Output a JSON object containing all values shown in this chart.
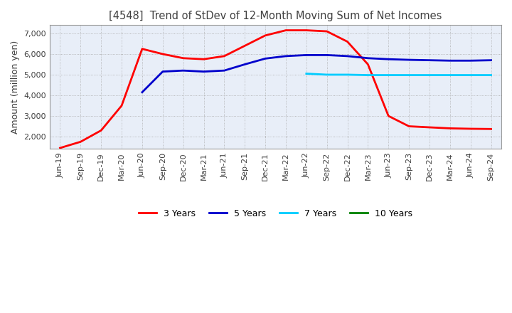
{
  "title": "[4548]  Trend of StDev of 12-Month Moving Sum of Net Incomes",
  "ylabel": "Amount (million yen)",
  "ylim": [
    1400,
    7400
  ],
  "yticks": [
    2000,
    3000,
    4000,
    5000,
    6000,
    7000
  ],
  "background_color": "#ffffff",
  "plot_bg_color": "#e8eef8",
  "grid_color": "#aaaaaa",
  "x_labels": [
    "Jun-19",
    "Sep-19",
    "Dec-19",
    "Mar-20",
    "Jun-20",
    "Sep-20",
    "Dec-20",
    "Mar-21",
    "Jun-21",
    "Sep-21",
    "Dec-21",
    "Mar-22",
    "Jun-22",
    "Sep-22",
    "Dec-22",
    "Mar-23",
    "Jun-23",
    "Sep-23",
    "Dec-23",
    "Mar-24",
    "Jun-24",
    "Sep-24"
  ],
  "series": {
    "3 Years": {
      "color": "#ff0000",
      "values": [
        1450,
        1750,
        2300,
        3500,
        6250,
        6000,
        5800,
        5750,
        5900,
        6400,
        6900,
        7150,
        7150,
        7100,
        6600,
        5500,
        3000,
        2500,
        2450,
        2400,
        2380,
        2370
      ]
    },
    "5 Years": {
      "color": "#0000cc",
      "values": [
        null,
        null,
        null,
        null,
        4150,
        5150,
        5200,
        5150,
        5200,
        5500,
        5780,
        5900,
        5950,
        5950,
        5900,
        5800,
        5750,
        5720,
        5700,
        5680,
        5680,
        5700
      ]
    },
    "7 Years": {
      "color": "#00ccff",
      "values": [
        null,
        null,
        null,
        null,
        null,
        null,
        null,
        null,
        null,
        null,
        null,
        null,
        5050,
        5000,
        5000,
        4980,
        4980,
        4980,
        4980,
        4980,
        4980,
        4980
      ]
    },
    "10 Years": {
      "color": "#008000",
      "values": [
        null,
        null,
        null,
        null,
        null,
        null,
        null,
        null,
        null,
        null,
        null,
        null,
        null,
        null,
        null,
        null,
        null,
        null,
        null,
        null,
        null,
        null
      ]
    }
  },
  "legend_order": [
    "3 Years",
    "5 Years",
    "7 Years",
    "10 Years"
  ]
}
